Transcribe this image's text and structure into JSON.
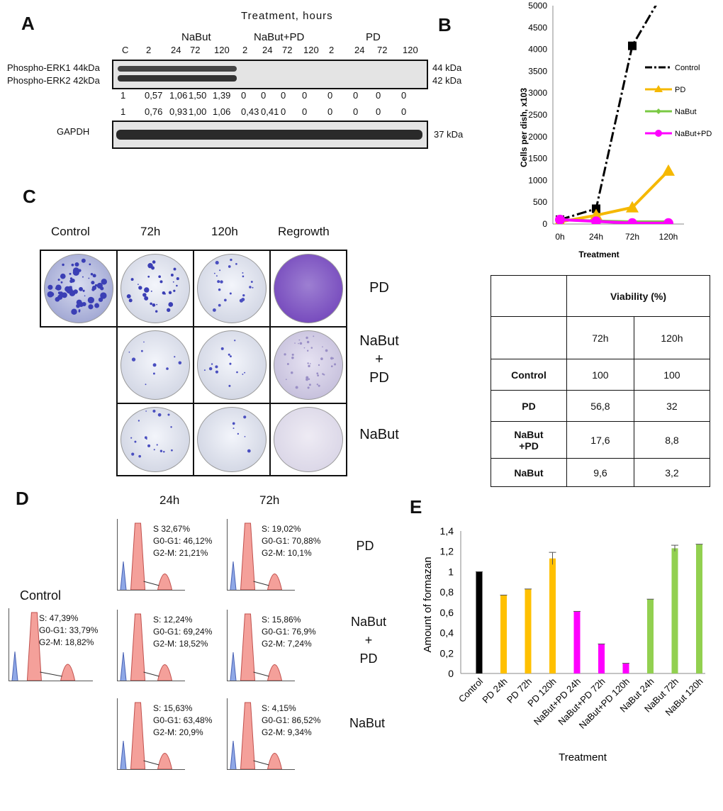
{
  "panels": {
    "a": "A",
    "b": "B",
    "c": "C",
    "d": "D",
    "e": "E"
  },
  "panel_a": {
    "treatment_title": "Treatment, hours",
    "groups": [
      "NaBut",
      "NaBut+PD",
      "PD"
    ],
    "lanes": [
      "C",
      "2",
      "24",
      "72",
      "120",
      "2",
      "24",
      "72",
      "120",
      "2",
      "24",
      "72",
      "120"
    ],
    "band_left": [
      "Phospho-ERK1 44kDa",
      "Phospho-ERK2 42kDa"
    ],
    "band_right": [
      "44 kDa",
      "42 kDa"
    ],
    "row1": [
      "1",
      "0,57",
      "1,06",
      "1,50",
      "1,39",
      "0",
      "0",
      "0",
      "0",
      "0",
      "0",
      "0",
      "0"
    ],
    "row2": [
      "1",
      "0,76",
      "0,93",
      "1,00",
      "1,06",
      "0,43",
      "0,41",
      "0",
      "0",
      "0",
      "0",
      "0",
      "0"
    ],
    "gapdh": "GAPDH",
    "gapdh_right": "37 kDa"
  },
  "panel_c": {
    "cols": [
      "Control",
      "72h",
      "120h",
      "Regrowth"
    ],
    "rows": [
      "PD",
      "NaBut\n+\nPD",
      "NaBut"
    ]
  },
  "viability": {
    "header": "Viability  (%)",
    "times": [
      "72h",
      "120h"
    ],
    "rows": [
      {
        "name": "Control",
        "v72": "100",
        "v120": "100"
      },
      {
        "name": "PD",
        "v72": "56,8",
        "v120": "32"
      },
      {
        "name": "NaBut\n+PD",
        "v72": "17,6",
        "v120": "8,8"
      },
      {
        "name": "NaBut",
        "v72": "9,6",
        "v120": "3,2"
      }
    ]
  },
  "panel_d": {
    "times": [
      "24h",
      "72h"
    ],
    "control_label": "Control",
    "control": [
      "S: 47,39%",
      "G0-G1: 33,79%",
      "G2-M: 18,82%"
    ],
    "rows": [
      {
        "name": "PD",
        "h24": [
          "S  32,67%",
          "G0-G1: 46,12%",
          "G2-M: 21,21%"
        ],
        "h72": [
          "S: 19,02%",
          "G0-G1: 70,88%",
          "G2-M: 10,1%"
        ]
      },
      {
        "name": "NaBut\n+\nPD",
        "h24": [
          "S: 12,24%",
          "G0-G1: 69,24%",
          "G2-M: 18,52%"
        ],
        "h72": [
          "S: 15,86%",
          "G0-G1: 76,9%",
          "G2-M: 7,24%"
        ]
      },
      {
        "name": "NaBut",
        "h24": [
          "S: 15,63%",
          "G0-G1: 63,48%",
          "G2-M: 20,9%"
        ],
        "h72": [
          "S: 4,15%",
          "G0-G1: 86,52%",
          "G2-M: 9,34%"
        ]
      }
    ]
  },
  "chart_data": [
    {
      "type": "line",
      "x": [
        "0h",
        "24h",
        "72h",
        "120h"
      ],
      "xlabel": "Treatment",
      "ylabel": "Cells per dish, x103",
      "ylim": [
        0,
        5000
      ],
      "yticks": [
        "0",
        "500",
        "1000",
        "1500",
        "2000",
        "2500",
        "3000",
        "3500",
        "4000",
        "4500",
        "5000"
      ],
      "legend": "right",
      "series": [
        {
          "name": "Control",
          "values": [
            100,
            350,
            4080,
            5500
          ],
          "color": "#000000",
          "marker": "square"
        },
        {
          "name": "PD",
          "values": [
            50,
            200,
            380,
            1220
          ],
          "color": "#f5b800",
          "marker": "triangle"
        },
        {
          "name": "NaBut",
          "values": [
            100,
            70,
            50,
            50
          ],
          "color": "#7ac943",
          "marker": "diamond"
        },
        {
          "name": "NaBut+PD",
          "values": [
            100,
            60,
            20,
            20
          ],
          "color": "#ff00ff",
          "marker": "circle"
        }
      ]
    },
    {
      "type": "bar",
      "categories": [
        "Control",
        "PD 24h",
        "PD 72h",
        "PD 120h",
        "NaBut+PD 24h",
        "NaBut+PD 72h",
        "NaBut+PD 120h",
        "NaBut 24h",
        "NaBut 72h",
        "NaBut 120h"
      ],
      "values": [
        1.0,
        0.77,
        0.83,
        1.13,
        0.61,
        0.29,
        0.1,
        0.73,
        1.23,
        1.27
      ],
      "errors": [
        0,
        0,
        0,
        0.06,
        0,
        0,
        0,
        0,
        0.03,
        0
      ],
      "colors": [
        "#000000",
        "#ffc000",
        "#ffc000",
        "#ffc000",
        "#ff00ff",
        "#ff00ff",
        "#ff00ff",
        "#92d050",
        "#92d050",
        "#92d050"
      ],
      "xlabel": "Treatment",
      "ylabel": "Amount of formazan",
      "ylim": [
        0,
        1.4
      ],
      "yticks": [
        "0",
        "0,2",
        "0,4",
        "0,6",
        "0,8",
        "1",
        "1,2",
        "1,4"
      ]
    }
  ]
}
